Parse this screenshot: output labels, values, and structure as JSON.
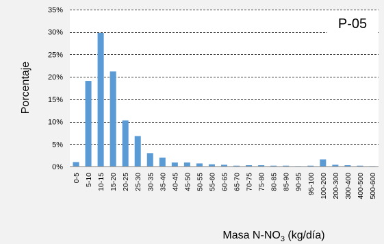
{
  "chart_data": {
    "type": "bar",
    "panel_label": "P-05",
    "ylabel": "Porcentaje",
    "xlabel": {
      "prefix": "Masa N-NO",
      "subscript": "3",
      "suffix": " (kg/día)"
    },
    "ylim": [
      0,
      35
    ],
    "y_ticks": [
      {
        "value": 0,
        "label": "0%"
      },
      {
        "value": 5,
        "label": "5%"
      },
      {
        "value": 10,
        "label": "10%"
      },
      {
        "value": 15,
        "label": "15%"
      },
      {
        "value": 20,
        "label": "20%"
      },
      {
        "value": 25,
        "label": "25%"
      },
      {
        "value": 30,
        "label": "30%"
      },
      {
        "value": 35,
        "label": "35%"
      }
    ],
    "grid": "horizontal dashed",
    "categories": [
      "0-5",
      "5-10",
      "10-15",
      "15-20",
      "20-25",
      "25-30",
      "30-35",
      "35-40",
      "40-45",
      "45-50",
      "50-55",
      "55-60",
      "60-65",
      "65-70",
      "70-75",
      "75-80",
      "80-85",
      "85-90",
      "90-95",
      "95-100",
      "100-200",
      "200-300",
      "300-400",
      "400-500",
      "500-600"
    ],
    "values": [
      1.0,
      19.1,
      29.8,
      21.2,
      10.3,
      6.8,
      3.0,
      2.0,
      0.9,
      0.9,
      0.7,
      0.5,
      0.4,
      0.2,
      0.3,
      0.3,
      0.2,
      0.2,
      0.1,
      0.2,
      1.6,
      0.4,
      0.3,
      0.2,
      0.1
    ],
    "colors": {
      "bar": "#5b9bd5",
      "plot_background": "#ffffff",
      "page_background": "#f2f2f2",
      "grid": "#000000"
    }
  }
}
